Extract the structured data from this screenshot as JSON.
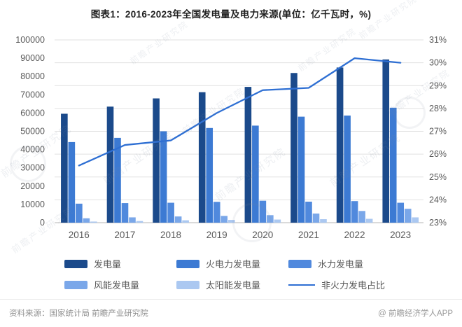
{
  "title": "图表1：2016-2023年全国发电量及电力来源(单位：亿千瓦时，%)",
  "chart_data": {
    "type": "bar",
    "note": "grouped bar chart with secondary-axis line",
    "categories": [
      "2016",
      "2017",
      "2018",
      "2019",
      "2020",
      "2021",
      "2022",
      "2023"
    ],
    "series": [
      {
        "key": "total",
        "name": "发电量",
        "type": "bar",
        "color": "#1b4a8b",
        "values": [
          59600,
          63500,
          68000,
          71400,
          74300,
          81900,
          84900,
          89300
        ]
      },
      {
        "key": "thermal",
        "name": "火电力发电量",
        "type": "bar",
        "color": "#3c7ad3",
        "values": [
          44100,
          46400,
          50000,
          51800,
          53100,
          58000,
          58600,
          62900
        ]
      },
      {
        "key": "hydro",
        "name": "水力发电量",
        "type": "bar",
        "color": "#5089dd",
        "values": [
          10400,
          10700,
          10900,
          11400,
          12000,
          11500,
          11800,
          10900
        ]
      },
      {
        "key": "wind",
        "name": "风能发电量",
        "type": "bar",
        "color": "#7aa7e9",
        "values": [
          2400,
          2900,
          3400,
          3700,
          4100,
          5000,
          6400,
          7600
        ]
      },
      {
        "key": "solar",
        "name": "太阳能发电量",
        "type": "bar",
        "color": "#abc8f1",
        "values": [
          600,
          900,
          1300,
          1500,
          1700,
          1900,
          2100,
          2900
        ]
      },
      {
        "key": "nonthermal_share",
        "name": "非火力发电占比",
        "type": "line",
        "axis": "right",
        "color": "#2e6fd3",
        "values": [
          25.5,
          26.4,
          26.6,
          27.8,
          28.8,
          28.9,
          30.2,
          30.0
        ]
      }
    ],
    "left_axis": {
      "min": 0,
      "max": 100000,
      "step": 10000
    },
    "right_axis": {
      "min": 23,
      "max": 31,
      "step": 1,
      "suffix": "%"
    },
    "grid": "horizontal lines at right-axis 1% steps",
    "legend_position": "bottom",
    "unit": "亿千瓦时，%"
  },
  "watermark": {
    "text": "前瞻产业研究院"
  },
  "footer": {
    "source": "资料来源：国家统计局 前瞻产业研究院",
    "credit": "@ 前瞻经济学人APP"
  }
}
